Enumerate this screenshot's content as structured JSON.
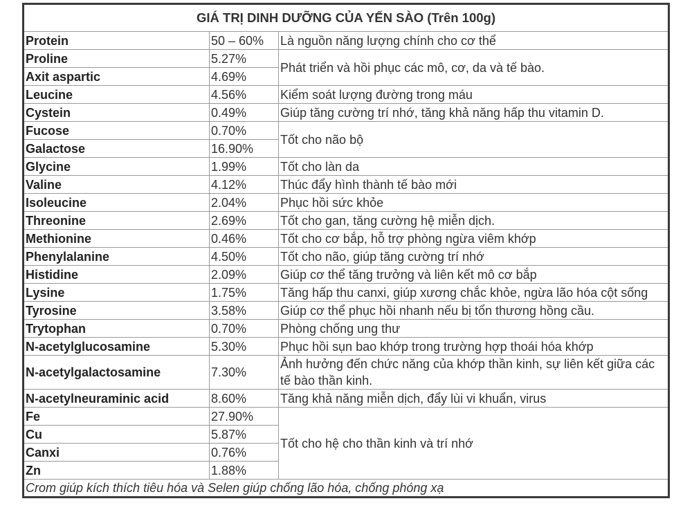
{
  "title": "GIÁ TRỊ DINH DƯỠNG CỦA YẾN SÀO (Trên 100g)",
  "groups": [
    {
      "desc": "Là nguồn năng lượng chính cho cơ thể",
      "items": [
        {
          "name": "Protein",
          "value": "50 – 60%"
        }
      ]
    },
    {
      "desc": "Phát triển và hồi phục các mô, cơ, da và tế bào.",
      "items": [
        {
          "name": "Proline",
          "value": "5.27%"
        },
        {
          "name": "Axit aspartic",
          "value": "4.69%"
        }
      ]
    },
    {
      "desc": "Kiểm soát lượng đường trong máu",
      "items": [
        {
          "name": "Leucine",
          "value": "4.56%"
        }
      ]
    },
    {
      "desc": "Giúp tăng cường trí nhớ, tăng khả năng hấp thu vitamin D.",
      "items": [
        {
          "name": "Cystein",
          "value": "0.49%"
        }
      ]
    },
    {
      "desc": "Tốt cho não bộ",
      "items": [
        {
          "name": "Fucose",
          "value": "0.70%"
        },
        {
          "name": "Galactose",
          "value": "16.90%"
        }
      ]
    },
    {
      "desc": "Tốt cho làn da",
      "items": [
        {
          "name": "Glycine",
          "value": "1.99%"
        }
      ]
    },
    {
      "desc": "Thúc đẩy hình thành tế bào mới",
      "items": [
        {
          "name": "Valine",
          "value": "4.12%"
        }
      ]
    },
    {
      "desc": "Phục hồi sức khỏe",
      "items": [
        {
          "name": "Isoleucine",
          "value": "2.04%"
        }
      ]
    },
    {
      "desc": "Tốt cho gan, tăng cường hệ miễn dịch.",
      "items": [
        {
          "name": "Threonine",
          "value": "2.69%"
        }
      ]
    },
    {
      "desc": "Tốt cho cơ bắp, hỗ trợ phòng ngừa viêm khớp",
      "items": [
        {
          "name": "Methionine",
          "value": "0.46%"
        }
      ]
    },
    {
      "desc": "Tốt cho não, giúp tăng cường trí nhớ",
      "items": [
        {
          "name": "Phenylalanine",
          "value": "4.50%"
        }
      ]
    },
    {
      "desc": "Giúp cơ thể tăng trưởng và liên kết mô cơ bắp",
      "items": [
        {
          "name": "Histidine",
          "value": "2.09%"
        }
      ]
    },
    {
      "desc": "Tăng hấp thu canxi, giúp xương chắc khỏe, ngừa lão hóa cột sống",
      "items": [
        {
          "name": "Lysine",
          "value": "1.75%"
        }
      ]
    },
    {
      "desc": "Giúp cơ thể phục hồi nhanh nếu bị tổn thương hồng cầu.",
      "items": [
        {
          "name": "Tyrosine",
          "value": "3.58%"
        }
      ]
    },
    {
      "desc": "Phòng chống ung thư",
      "items": [
        {
          "name": "Trytophan",
          "value": "0.70%"
        }
      ]
    },
    {
      "desc": "Phục hồi sụn bao khớp trong trường hợp thoái hóa khớp",
      "items": [
        {
          "name": "N-acetylglucosamine",
          "value": "5.30%"
        }
      ]
    },
    {
      "desc": "Ảnh hưởng đến chức năng của khớp thần kinh, sự liên kết giữa các tế bào thần kinh.",
      "items": [
        {
          "name": "N-acetylgalactosamine",
          "value": "7.30%"
        }
      ]
    },
    {
      "desc": "Tăng khả năng miễn dịch, đẩy lùi vi khuẩn, virus",
      "items": [
        {
          "name": "N-acetylneuraminic acid",
          "value": "8.60%"
        }
      ]
    },
    {
      "desc": "Tốt cho hệ cho thần kinh và trí nhớ",
      "items": [
        {
          "name": "Fe",
          "value": "27.90%"
        },
        {
          "name": "Cu",
          "value": "5.87%"
        },
        {
          "name": "Canxi",
          "value": "0.76%"
        },
        {
          "name": "Zn",
          "value": "1.88%"
        }
      ]
    }
  ],
  "footer": "Crom giúp kích thích tiêu hóa và Selen giúp chống lão hóa, chống phóng xạ"
}
